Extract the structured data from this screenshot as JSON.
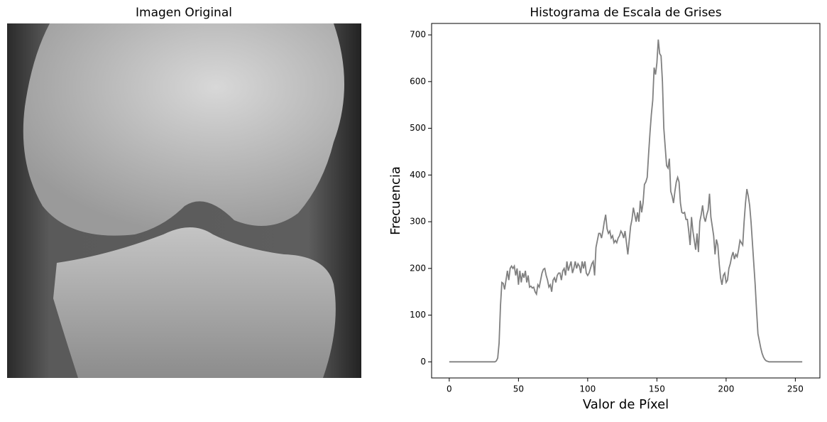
{
  "chart_data": [
    {
      "type": "image",
      "title": "Imagen Original"
    },
    {
      "type": "line",
      "title": "Histograma de Escala de Grises",
      "x_label": "Valor de Píxel",
      "y_label": "Frecuencia",
      "color": "#808080",
      "grid": false,
      "xlim": [
        -12.75,
        267.75
      ],
      "ylim": [
        -34.5,
        724.5
      ],
      "xticks": [
        0,
        50,
        100,
        150,
        200,
        250
      ],
      "yticks": [
        0,
        100,
        200,
        300,
        400,
        500,
        600,
        700
      ],
      "x": [
        0,
        1,
        2,
        3,
        4,
        5,
        6,
        7,
        8,
        9,
        10,
        11,
        12,
        13,
        14,
        15,
        16,
        17,
        18,
        19,
        20,
        21,
        22,
        23,
        24,
        25,
        26,
        27,
        28,
        29,
        30,
        31,
        32,
        33,
        34,
        35,
        36,
        37,
        38,
        39,
        40,
        41,
        42,
        43,
        44,
        45,
        46,
        47,
        48,
        49,
        50,
        51,
        52,
        53,
        54,
        55,
        56,
        57,
        58,
        59,
        60,
        61,
        62,
        63,
        64,
        65,
        66,
        67,
        68,
        69,
        70,
        71,
        72,
        73,
        74,
        75,
        76,
        77,
        78,
        79,
        80,
        81,
        82,
        83,
        84,
        85,
        86,
        87,
        88,
        89,
        90,
        91,
        92,
        93,
        94,
        95,
        96,
        97,
        98,
        99,
        100,
        101,
        102,
        103,
        104,
        105,
        106,
        107,
        108,
        109,
        110,
        111,
        112,
        113,
        114,
        115,
        116,
        117,
        118,
        119,
        120,
        121,
        122,
        123,
        124,
        125,
        126,
        127,
        128,
        129,
        130,
        131,
        132,
        133,
        134,
        135,
        136,
        137,
        138,
        139,
        140,
        141,
        142,
        143,
        144,
        145,
        146,
        147,
        148,
        149,
        150,
        151,
        152,
        153,
        154,
        155,
        156,
        157,
        158,
        159,
        160,
        161,
        162,
        163,
        164,
        165,
        166,
        167,
        168,
        169,
        170,
        171,
        172,
        173,
        174,
        175,
        176,
        177,
        178,
        179,
        180,
        181,
        182,
        183,
        184,
        185,
        186,
        187,
        188,
        189,
        190,
        191,
        192,
        193,
        194,
        195,
        196,
        197,
        198,
        199,
        200,
        201,
        202,
        203,
        204,
        205,
        206,
        207,
        208,
        209,
        210,
        211,
        212,
        213,
        214,
        215,
        216,
        217,
        218,
        219,
        220,
        221,
        222,
        223,
        224,
        225,
        226,
        227,
        228,
        229,
        230,
        231,
        232,
        233,
        234,
        235,
        236,
        237,
        238,
        239,
        240,
        241,
        242,
        243,
        244,
        245,
        246,
        247,
        248,
        249,
        250,
        251,
        252,
        253,
        254,
        255
      ],
      "values": [
        0,
        0,
        0,
        0,
        0,
        0,
        0,
        0,
        0,
        0,
        0,
        0,
        0,
        0,
        0,
        0,
        0,
        0,
        0,
        0,
        0,
        0,
        0,
        0,
        0,
        0,
        0,
        0,
        0,
        0,
        0,
        0,
        0,
        0,
        2,
        8,
        40,
        120,
        170,
        168,
        155,
        175,
        195,
        175,
        200,
        205,
        200,
        205,
        185,
        200,
        165,
        195,
        170,
        190,
        180,
        195,
        170,
        185,
        160,
        162,
        158,
        160,
        150,
        145,
        165,
        160,
        175,
        190,
        198,
        200,
        185,
        175,
        160,
        165,
        150,
        175,
        180,
        170,
        185,
        190,
        190,
        175,
        195,
        200,
        185,
        215,
        195,
        205,
        215,
        190,
        200,
        215,
        200,
        210,
        205,
        190,
        215,
        200,
        215,
        190,
        185,
        190,
        200,
        210,
        215,
        185,
        245,
        260,
        275,
        275,
        265,
        280,
        300,
        315,
        285,
        275,
        280,
        265,
        270,
        255,
        260,
        255,
        265,
        270,
        280,
        275,
        265,
        280,
        255,
        230,
        260,
        290,
        305,
        330,
        315,
        300,
        320,
        300,
        345,
        320,
        340,
        380,
        385,
        395,
        445,
        490,
        530,
        560,
        630,
        615,
        640,
        690,
        660,
        655,
        600,
        500,
        460,
        420,
        415,
        435,
        365,
        355,
        340,
        365,
        385,
        395,
        385,
        340,
        320,
        318,
        320,
        305,
        305,
        280,
        250,
        310,
        280,
        260,
        240,
        275,
        235,
        300,
        315,
        335,
        310,
        300,
        315,
        325,
        360,
        310,
        290,
        270,
        230,
        262,
        250,
        210,
        180,
        165,
        185,
        190,
        170,
        175,
        200,
        210,
        225,
        235,
        220,
        230,
        225,
        240,
        260,
        255,
        250,
        300,
        340,
        370,
        355,
        335,
        300,
        255,
        210,
        165,
        110,
        60,
        45,
        30,
        18,
        10,
        5,
        2,
        1,
        0,
        0,
        0,
        0,
        0,
        0,
        0,
        0,
        0,
        0,
        0,
        0,
        0,
        0,
        0,
        0,
        0,
        0,
        0,
        0,
        0,
        0,
        0,
        0,
        0
      ]
    }
  ]
}
